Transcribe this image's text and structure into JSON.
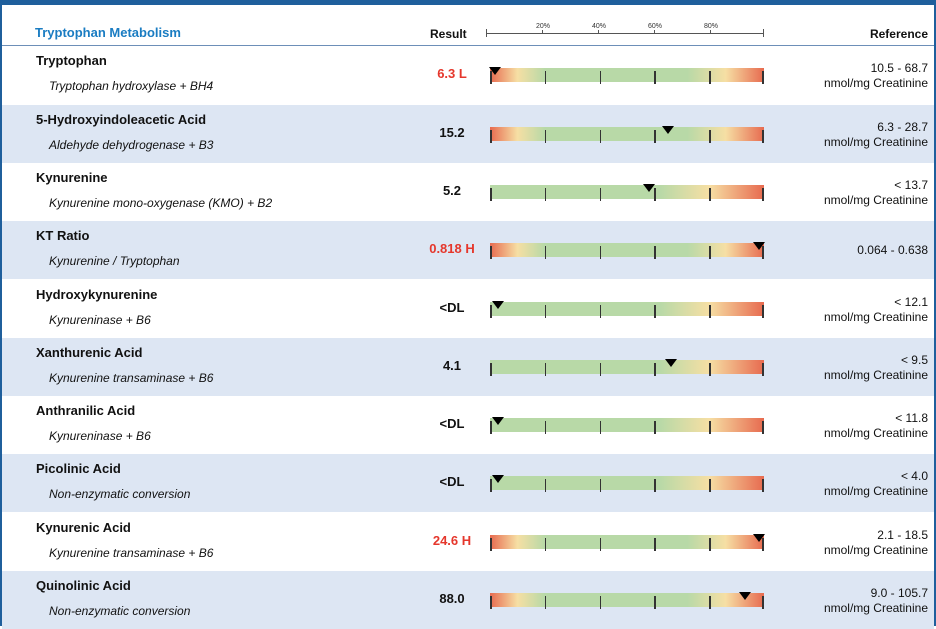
{
  "header": {
    "title": "Tryptophan Metabolism",
    "result_label": "Result",
    "reference_label": "Reference",
    "scale_ticks": [
      "20%",
      "40%",
      "60%",
      "80%"
    ]
  },
  "colors": {
    "title": "#1a7cc2",
    "flag": "#e5372c",
    "band_green": "#b8d9a7",
    "band_yellow": "#f6dfa4",
    "band_red": "#e76a4f",
    "row_shade": "#dde6f3"
  },
  "markers": [
    {
      "name": "Tryptophan",
      "gradient": "two-sided",
      "position_pct": 2
    },
    {
      "name": "5-Hydroxyindoleacetic Acid",
      "gradient": "two-sided",
      "position_pct": 65
    },
    {
      "name": "Kynurenine",
      "gradient": "upper",
      "position_pct": 58
    },
    {
      "name": "KT Ratio",
      "gradient": "two-sided",
      "position_pct": 98
    },
    {
      "name": "Hydroxykynurenine",
      "gradient": "upper",
      "position_pct": 3
    },
    {
      "name": "Xanthurenic Acid",
      "gradient": "upper",
      "position_pct": 66
    },
    {
      "name": "Anthranilic Acid",
      "gradient": "upper",
      "position_pct": 3
    },
    {
      "name": "Picolinic Acid",
      "gradient": "upper",
      "position_pct": 3
    },
    {
      "name": "Kynurenic Acid",
      "gradient": "two-sided",
      "position_pct": 98
    },
    {
      "name": "Quinolinic Acid",
      "gradient": "two-sided",
      "position_pct": 93
    }
  ],
  "rows": [
    {
      "name": "Tryptophan",
      "enzyme": "Tryptophan hydroxylase + BH4",
      "result": "6.3 L",
      "flag": true,
      "ref_range": "10.5 - 68.7",
      "ref_unit": "nmol/mg Creatinine"
    },
    {
      "name": "5-Hydroxyindoleacetic Acid",
      "enzyme": "Aldehyde dehydrogenase + B3",
      "result": "15.2",
      "flag": false,
      "ref_range": "6.3 - 28.7",
      "ref_unit": "nmol/mg Creatinine"
    },
    {
      "name": "Kynurenine",
      "enzyme": "Kynurenine mono-oxygenase (KMO) + B2",
      "result": "5.2",
      "flag": false,
      "ref_range": "< 13.7",
      "ref_unit": "nmol/mg Creatinine"
    },
    {
      "name": "KT Ratio",
      "enzyme": "Kynurenine / Tryptophan",
      "result": "0.818 H",
      "flag": true,
      "ref_range": "0.064 - 0.638",
      "ref_unit": ""
    },
    {
      "name": "Hydroxykynurenine",
      "enzyme": "Kynureninase + B6",
      "result": "<DL",
      "flag": false,
      "ref_range": "< 12.1",
      "ref_unit": "nmol/mg Creatinine"
    },
    {
      "name": "Xanthurenic Acid",
      "enzyme": "Kynurenine transaminase + B6",
      "result": "4.1",
      "flag": false,
      "ref_range": "< 9.5",
      "ref_unit": "nmol/mg Creatinine"
    },
    {
      "name": "Anthranilic Acid",
      "enzyme": "Kynureninase + B6",
      "result": "<DL",
      "flag": false,
      "ref_range": "< 11.8",
      "ref_unit": "nmol/mg Creatinine"
    },
    {
      "name": "Picolinic Acid",
      "enzyme": "Non-enzymatic conversion",
      "result": "<DL",
      "flag": false,
      "ref_range": "< 4.0",
      "ref_unit": "nmol/mg Creatinine"
    },
    {
      "name": "Kynurenic Acid",
      "enzyme": "Kynurenine transaminase + B6",
      "result": "24.6 H",
      "flag": true,
      "ref_range": "2.1 - 18.5",
      "ref_unit": "nmol/mg Creatinine"
    },
    {
      "name": "Quinolinic Acid",
      "enzyme": "Non-enzymatic conversion",
      "result": "88.0",
      "flag": false,
      "ref_range": "9.0 - 105.7",
      "ref_unit": "nmol/mg Creatinine"
    }
  ]
}
